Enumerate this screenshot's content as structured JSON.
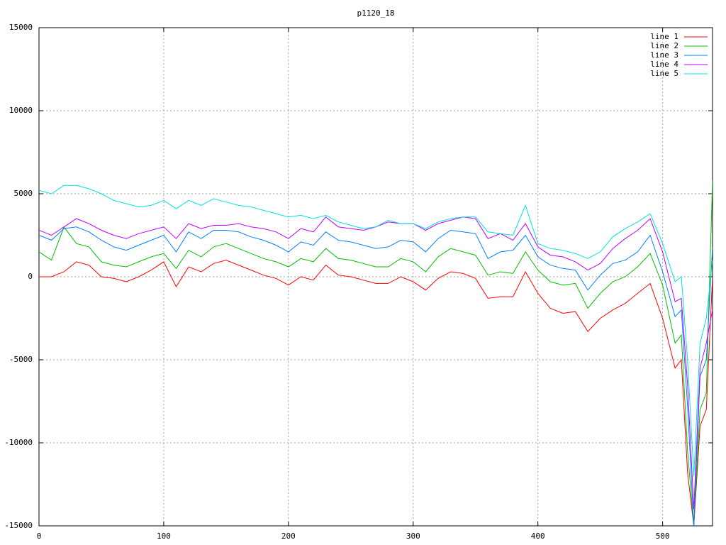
{
  "chart_data": {
    "type": "line",
    "title": "p1120_18",
    "x": [
      0,
      10,
      20,
      30,
      40,
      50,
      60,
      70,
      80,
      90,
      100,
      110,
      120,
      130,
      140,
      150,
      160,
      170,
      180,
      190,
      200,
      210,
      220,
      230,
      240,
      250,
      260,
      270,
      280,
      290,
      300,
      310,
      320,
      330,
      340,
      350,
      360,
      370,
      380,
      390,
      400,
      410,
      420,
      430,
      440,
      450,
      460,
      470,
      480,
      490,
      500,
      510,
      515,
      520,
      525,
      530,
      535,
      540
    ],
    "series": [
      {
        "name": "line 1",
        "color": "#ff0000",
        "values": [
          0,
          0,
          300,
          900,
          700,
          0,
          -100,
          -300,
          0,
          400,
          900,
          -600,
          600,
          300,
          800,
          1000,
          700,
          400,
          100,
          -100,
          -500,
          0,
          -200,
          700,
          100,
          0,
          -200,
          -400,
          -400,
          0,
          -300,
          -800,
          -100,
          300,
          200,
          -100,
          -1300,
          -1200,
          -1200,
          300,
          -1000,
          -1900,
          -2200,
          -2100,
          -3300,
          -2500,
          -2000,
          -1600,
          -1000,
          -400,
          -2500,
          -5500,
          -5000,
          -11800,
          -15000,
          -9000,
          -8000,
          0
        ]
      },
      {
        "name": "line 2",
        "color": "#00c000",
        "values": [
          1500,
          1000,
          3000,
          2000,
          1800,
          900,
          700,
          600,
          900,
          1200,
          1400,
          500,
          1600,
          1200,
          1800,
          2000,
          1700,
          1400,
          1100,
          900,
          600,
          1100,
          900,
          1700,
          1100,
          1000,
          800,
          600,
          600,
          1100,
          900,
          300,
          1200,
          1700,
          1500,
          1300,
          100,
          300,
          200,
          1500,
          400,
          -300,
          -500,
          -400,
          -1900,
          -1000,
          -300,
          0,
          600,
          1400,
          -500,
          -4000,
          -3500,
          -10500,
          -15000,
          -8000,
          -7000,
          5800
        ]
      },
      {
        "name": "line 3",
        "color": "#0080ff",
        "values": [
          2500,
          2200,
          2900,
          3000,
          2700,
          2200,
          1800,
          1600,
          1900,
          2200,
          2500,
          1500,
          2700,
          2300,
          2800,
          2800,
          2700,
          2400,
          2200,
          1900,
          1500,
          2100,
          1900,
          2700,
          2200,
          2100,
          1900,
          1700,
          1800,
          2200,
          2100,
          1500,
          2300,
          2800,
          2700,
          2600,
          1100,
          1500,
          1600,
          2500,
          1200,
          700,
          500,
          400,
          -800,
          100,
          800,
          1000,
          1500,
          2500,
          300,
          -2400,
          -2000,
          -7800,
          -15000,
          -6000,
          -5000,
          1800
        ]
      },
      {
        "name": "line 4",
        "color": "#c000ff",
        "values": [
          2800,
          2500,
          3000,
          3500,
          3200,
          2800,
          2500,
          2300,
          2600,
          2800,
          3000,
          2300,
          3200,
          2900,
          3100,
          3100,
          3200,
          3000,
          2900,
          2700,
          2300,
          2900,
          2700,
          3600,
          3000,
          2900,
          2800,
          3000,
          3300,
          3200,
          3200,
          2800,
          3200,
          3400,
          3600,
          3500,
          2300,
          2600,
          2200,
          3200,
          1800,
          1300,
          1200,
          900,
          400,
          800,
          1700,
          2300,
          2800,
          3500,
          1500,
          -1500,
          -1300,
          -6500,
          -14000,
          -5500,
          -4000,
          -2000
        ]
      },
      {
        "name": "line 5",
        "color": "#00e0e0",
        "values": [
          5200,
          5000,
          5500,
          5500,
          5300,
          5000,
          4600,
          4400,
          4200,
          4300,
          4600,
          4100,
          4600,
          4300,
          4700,
          4500,
          4300,
          4200,
          4000,
          3800,
          3600,
          3700,
          3500,
          3700,
          3300,
          3100,
          2900,
          3000,
          3400,
          3200,
          3200,
          2900,
          3300,
          3500,
          3600,
          3600,
          2700,
          2600,
          2500,
          4300,
          2000,
          1700,
          1600,
          1400,
          1100,
          1500,
          2400,
          2900,
          3300,
          3800,
          2000,
          -300,
          0,
          -5000,
          -12000,
          -4000,
          -2500,
          1000
        ]
      }
    ],
    "xlim": [
      0,
      540
    ],
    "xticks": [
      0,
      100,
      200,
      300,
      400,
      500
    ],
    "ylim": [
      -15000,
      15000
    ],
    "yticks": [
      -15000,
      -10000,
      -5000,
      0,
      5000,
      10000,
      15000
    ],
    "grid": true,
    "legend": "top-right"
  }
}
